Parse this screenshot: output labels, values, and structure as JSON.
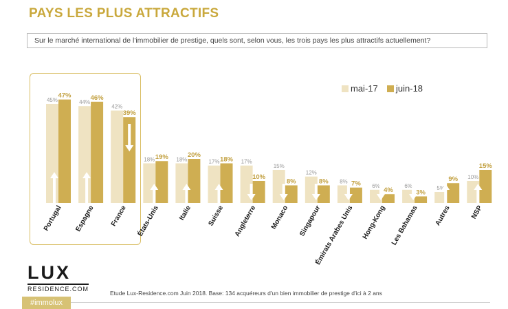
{
  "title": "PAYS LES PLUS ATTRACTIFS",
  "question": "Sur le marché international de l'immobilier de prestige, quels sont, selon vous, les trois pays les plus attractifs actuellement?",
  "logo": {
    "main": "LUX",
    "sub": "RESIDENCE.COM"
  },
  "source": "Etude Lux-Residence.com Juin 2018. Base:  134 acquéreurs d'un bien immobilier de prestige d'ici à 2 ans",
  "hashtag": "#immolux",
  "colors": {
    "series1": "#efe3c2",
    "series2": "#cfae52",
    "title": "#c9a83c",
    "highlight": "#d9bd62"
  },
  "chart_data": {
    "type": "bar",
    "title": "PAYS LES PLUS ATTRACTIFS",
    "categories": [
      "Portugal",
      "Espagne",
      "France",
      "États-Unis",
      "Italie",
      "Suisse",
      "Angleterre",
      "Monaco",
      "Singapour",
      "Émirats Arabes Unis",
      "Hong-Kong",
      "Les Bahamas",
      "Autres",
      "NSP"
    ],
    "series": [
      {
        "name": "mai-17",
        "values": [
          45,
          44,
          42,
          18,
          18,
          17,
          17,
          15,
          12,
          8,
          6,
          6,
          5,
          10
        ],
        "labels": [
          "45%",
          "44%",
          "42%",
          "18%",
          "18%",
          "17%",
          "17%",
          "15%",
          "12%",
          "8%",
          "6%",
          "6%",
          "5%",
          "10%"
        ]
      },
      {
        "name": "juin-18",
        "values": [
          47,
          46,
          39,
          19,
          20,
          18,
          10,
          8,
          8,
          7,
          4,
          3,
          9,
          15
        ],
        "labels": [
          "47%",
          "46%",
          "39%",
          "19%",
          "20%",
          "18%",
          "10%",
          "8%",
          "8%",
          "7%",
          "4%",
          "3%",
          "9%",
          "15%"
        ],
        "trend": [
          "up",
          "up",
          "down",
          "up",
          "up",
          "up",
          "down",
          "down",
          "down",
          "down",
          "down",
          "down",
          "up",
          "up"
        ]
      }
    ],
    "legend_position": "top-right",
    "highlighted_categories": [
      "Portugal",
      "Espagne",
      "France"
    ],
    "ylim": [
      0,
      50
    ],
    "grid": false
  }
}
